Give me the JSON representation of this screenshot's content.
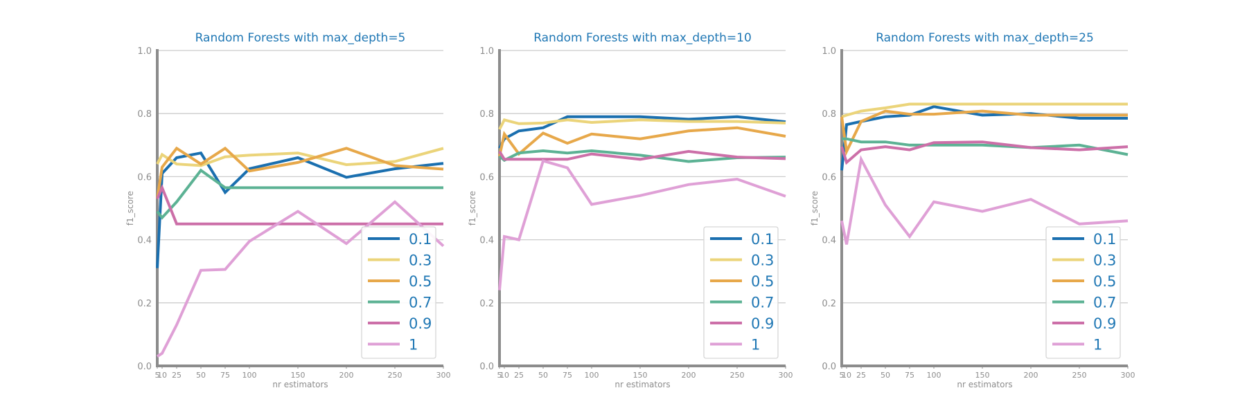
{
  "colors": {
    "title": "#1f77b4",
    "axis": "#8c8c8c",
    "grid": "#cccccc",
    "series": [
      "#1a6faf",
      "#ebd47a",
      "#e7a84a",
      "#5cb294",
      "#cc6fa8",
      "#dfa0d6"
    ]
  },
  "chart_data": [
    {
      "type": "line",
      "title": "Random Forests with max_depth=5",
      "xlabel": "nr estimators",
      "ylabel": "f1_score",
      "ylim": [
        0.0,
        1.0
      ],
      "xlim": [
        5,
        300
      ],
      "xticks": [
        "5",
        "10",
        "25",
        "50",
        "75",
        "100",
        "150",
        "200",
        "250",
        "300"
      ],
      "yticks": [
        "0.0",
        "0.2",
        "0.4",
        "0.6",
        "0.8",
        "1.0"
      ],
      "grid": "horizontal",
      "legend": "lower right",
      "x": [
        5,
        10,
        25,
        50,
        75,
        100,
        150,
        200,
        250,
        300
      ],
      "series": [
        {
          "name": "0.1",
          "values": [
            0.31,
            0.61,
            0.66,
            0.675,
            0.55,
            0.625,
            0.66,
            0.598,
            0.625,
            0.642
          ]
        },
        {
          "name": "0.3",
          "values": [
            0.64,
            0.67,
            0.64,
            0.635,
            0.663,
            0.668,
            0.675,
            0.638,
            0.648,
            0.69
          ]
        },
        {
          "name": "0.5",
          "values": [
            0.53,
            0.63,
            0.69,
            0.64,
            0.69,
            0.618,
            0.645,
            0.69,
            0.635,
            0.624
          ]
        },
        {
          "name": "0.7",
          "values": [
            0.49,
            0.47,
            0.52,
            0.62,
            0.565,
            0.565,
            0.565,
            0.565,
            0.565,
            0.565
          ]
        },
        {
          "name": "0.9",
          "values": [
            0.53,
            0.565,
            0.45,
            0.45,
            0.45,
            0.45,
            0.45,
            0.45,
            0.45,
            0.45
          ]
        },
        {
          "name": "1",
          "values": [
            0.03,
            0.04,
            0.13,
            0.303,
            0.306,
            0.395,
            0.49,
            0.388,
            0.52,
            0.38
          ]
        }
      ]
    },
    {
      "type": "line",
      "title": "Random Forests with max_depth=10",
      "xlabel": "nr estimators",
      "ylabel": "f1_score",
      "ylim": [
        0.0,
        1.0
      ],
      "xlim": [
        5,
        300
      ],
      "xticks": [
        "5",
        "10",
        "25",
        "50",
        "75",
        "100",
        "150",
        "200",
        "250",
        "300"
      ],
      "yticks": [
        "0.0",
        "0.2",
        "0.4",
        "0.6",
        "0.8",
        "1.0"
      ],
      "grid": "horizontal",
      "legend": "lower right",
      "x": [
        5,
        10,
        25,
        50,
        75,
        100,
        150,
        200,
        250,
        300
      ],
      "series": [
        {
          "name": "0.1",
          "values": [
            0.69,
            0.72,
            0.745,
            0.755,
            0.79,
            0.79,
            0.79,
            0.782,
            0.79,
            0.774
          ]
        },
        {
          "name": "0.3",
          "values": [
            0.75,
            0.78,
            0.768,
            0.77,
            0.78,
            0.772,
            0.78,
            0.775,
            0.775,
            0.77
          ]
        },
        {
          "name": "0.5",
          "values": [
            0.665,
            0.735,
            0.672,
            0.738,
            0.706,
            0.735,
            0.72,
            0.745,
            0.755,
            0.728
          ]
        },
        {
          "name": "0.7",
          "values": [
            0.665,
            0.652,
            0.675,
            0.682,
            0.675,
            0.682,
            0.668,
            0.648,
            0.66,
            0.662
          ]
        },
        {
          "name": "0.9",
          "values": [
            0.68,
            0.655,
            0.655,
            0.655,
            0.655,
            0.672,
            0.655,
            0.68,
            0.662,
            0.657
          ]
        },
        {
          "name": "1",
          "values": [
            0.24,
            0.41,
            0.4,
            0.65,
            0.628,
            0.512,
            0.54,
            0.575,
            0.592,
            0.538
          ]
        }
      ]
    },
    {
      "type": "line",
      "title": "Random Forests with max_depth=25",
      "xlabel": "nr estimators",
      "ylabel": "f1_score",
      "ylim": [
        0.0,
        1.0
      ],
      "xlim": [
        5,
        300
      ],
      "xticks": [
        "5",
        "10",
        "25",
        "50",
        "75",
        "100",
        "150",
        "200",
        "250",
        "300"
      ],
      "yticks": [
        "0.0",
        "0.2",
        "0.4",
        "0.6",
        "0.8",
        "1.0"
      ],
      "grid": "horizontal",
      "legend": "lower right",
      "x": [
        5,
        10,
        25,
        50,
        75,
        100,
        150,
        200,
        250,
        300
      ],
      "series": [
        {
          "name": "0.1",
          "values": [
            0.62,
            0.765,
            0.775,
            0.79,
            0.795,
            0.822,
            0.795,
            0.8,
            0.785,
            0.785
          ]
        },
        {
          "name": "0.3",
          "values": [
            0.79,
            0.795,
            0.808,
            0.818,
            0.83,
            0.83,
            0.83,
            0.83,
            0.83,
            0.83
          ]
        },
        {
          "name": "0.5",
          "values": [
            0.79,
            0.68,
            0.775,
            0.808,
            0.798,
            0.798,
            0.808,
            0.795,
            0.795,
            0.795
          ]
        },
        {
          "name": "0.7",
          "values": [
            0.72,
            0.72,
            0.71,
            0.71,
            0.7,
            0.7,
            0.7,
            0.692,
            0.7,
            0.67
          ]
        },
        {
          "name": "0.9",
          "values": [
            0.695,
            0.645,
            0.685,
            0.695,
            0.685,
            0.708,
            0.71,
            0.692,
            0.685,
            0.695
          ]
        },
        {
          "name": "1",
          "values": [
            0.46,
            0.385,
            0.655,
            0.51,
            0.41,
            0.52,
            0.49,
            0.528,
            0.45,
            0.46
          ]
        }
      ]
    }
  ]
}
